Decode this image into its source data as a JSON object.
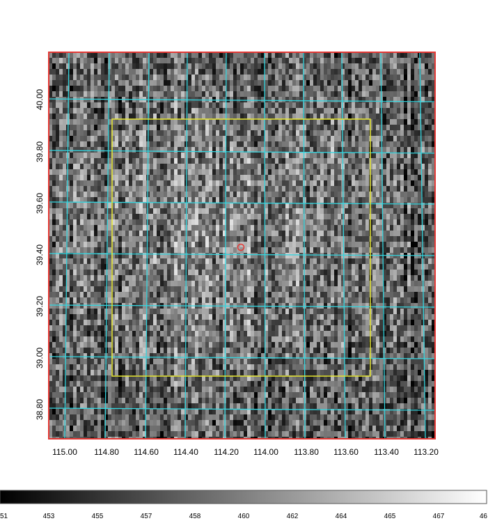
{
  "image": {
    "colormap": "grey",
    "border_color": "#e53935",
    "grid_color": "#33d6e0",
    "box_color": "#e6e62e",
    "marker_color": "#e53935",
    "marker": "circle"
  },
  "axes": {
    "x_ticks": [
      "115.00",
      "114.80",
      "114.60",
      "114.40",
      "114.20",
      "114.00",
      "113.80",
      "113.60",
      "113.40",
      "113.20"
    ],
    "y_ticks": [
      "40.00",
      "39.80",
      "39.60",
      "39.40",
      "39.20",
      "39.00",
      "38.80"
    ]
  },
  "colorbar": {
    "colormap": "grey",
    "ticks": [
      "51",
      "453",
      "455",
      "457",
      "458",
      "460",
      "462",
      "464",
      "465",
      "467",
      "46"
    ]
  }
}
